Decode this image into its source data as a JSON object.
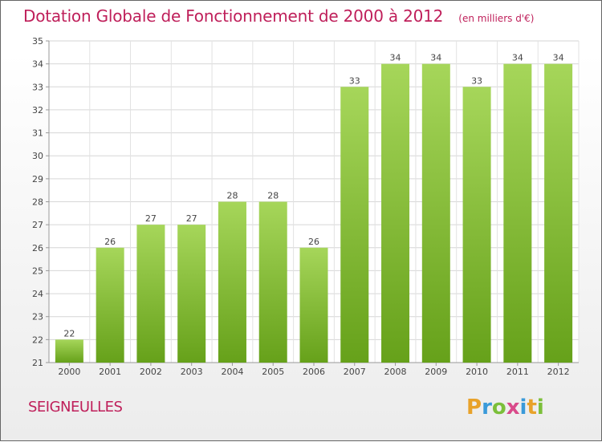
{
  "chart_data": {
    "type": "bar",
    "title": "Dotation Globale de Fonctionnement de 2000 à 2012",
    "unit_note": "(en milliers d'€)",
    "categories": [
      "2000",
      "2001",
      "2002",
      "2003",
      "2004",
      "2005",
      "2006",
      "2007",
      "2008",
      "2009",
      "2010",
      "2011",
      "2012"
    ],
    "values": [
      22,
      26,
      27,
      27,
      28,
      28,
      26,
      33,
      34,
      34,
      33,
      34,
      34
    ],
    "ylim": [
      21,
      35
    ],
    "yticks": [
      21,
      22,
      23,
      24,
      25,
      26,
      27,
      28,
      29,
      30,
      31,
      32,
      33,
      34,
      35
    ],
    "grid": true,
    "colors": {
      "bar_light": "#a6d65a",
      "bar_dark": "#66a11a",
      "title": "#bf1f5a"
    }
  },
  "footer": {
    "commune": "SEIGNEULLES",
    "logo_text": "Proxiti"
  }
}
